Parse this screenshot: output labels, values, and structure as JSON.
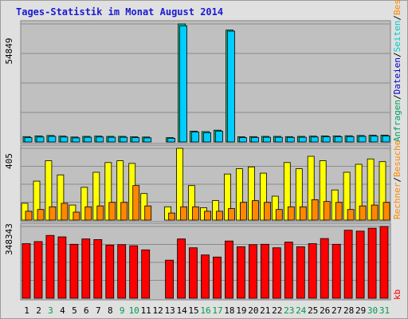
{
  "chart_data": {
    "type": "bar",
    "title": "Tages-Statistik im Monat August 2014",
    "categories": [
      "1",
      "2",
      "3",
      "4",
      "5",
      "6",
      "7",
      "8",
      "9",
      "10",
      "11",
      "12",
      "13",
      "14",
      "15",
      "16",
      "17",
      "18",
      "19",
      "20",
      "21",
      "22",
      "23",
      "24",
      "25",
      "26",
      "27",
      "28",
      "29",
      "30",
      "31"
    ],
    "weekend_days": [
      "3",
      "9",
      "10",
      "16",
      "17",
      "23",
      "24",
      "30",
      "31"
    ],
    "legend_right": {
      "top_parts": [
        "Anfragen",
        "/",
        "Dateien",
        "/",
        "Seiten",
        "/",
        "Besuche"
      ],
      "top_colors": [
        "#00a060",
        "#000000",
        "#0000cc",
        "#000000",
        "#00cccc",
        "#000000",
        "#ff8800"
      ],
      "mid_parts": [
        "Rechner",
        "/",
        "Besuche"
      ],
      "bottom": "kb"
    },
    "panels": [
      {
        "name": "top",
        "ymax_label": "54849",
        "ymax": 54849,
        "grid": true,
        "series": [
          {
            "name": "Anfragen",
            "color": "#00cc99",
            "values": [
              2500,
              2800,
              3000,
              2700,
              2300,
              2600,
              2700,
              2600,
              2600,
              2400,
              2300,
              0,
              2000,
              54849,
              5000,
              4800,
              5500,
              52000,
              2400,
              2500,
              2600,
              2600,
              2500,
              2600,
              2700,
              2800,
              2800,
              2900,
              3000,
              3100,
              3200
            ]
          },
          {
            "name": "Dateien",
            "color": "#00ccff",
            "values": [
              2000,
              2300,
              2600,
              2300,
              1900,
              2200,
              2300,
              2200,
              2200,
              2000,
              1900,
              0,
              1700,
              54000,
              4600,
              4300,
              5000,
              51500,
              2000,
              2100,
              2200,
              2200,
              2100,
              2200,
              2300,
              2400,
              2400,
              2500,
              2600,
              2700,
              2800
            ]
          }
        ]
      },
      {
        "name": "middle",
        "ymax_label": "405",
        "ymax": 405,
        "grid": true,
        "series": [
          {
            "name": "Rechner",
            "color": "#ffff00",
            "values": [
              95,
              220,
              335,
              255,
              85,
              185,
              270,
              325,
              335,
              320,
              150,
              0,
              75,
              405,
              195,
              70,
              110,
              260,
              290,
              300,
              265,
              135,
              325,
              290,
              360,
              335,
              170,
              270,
              315,
              345,
              330
            ]
          },
          {
            "name": "Besuche",
            "color": "#ff8800",
            "values": [
              50,
              60,
              75,
              95,
              45,
              75,
              80,
              100,
              100,
              195,
              80,
              0,
              40,
              75,
              75,
              50,
              50,
              65,
              100,
              110,
              100,
              60,
              75,
              75,
              115,
              105,
              100,
              60,
              80,
              85,
              100
            ]
          }
        ]
      },
      {
        "name": "bottom",
        "ymax_label": "348343",
        "ymax": 348343,
        "grid": true,
        "series": [
          {
            "name": "kb",
            "color": "#ff0000",
            "values": [
              265000,
              275000,
              305000,
              298000,
              262000,
              288000,
              285000,
              258000,
              260000,
              255000,
              235000,
              0,
              185000,
              288000,
              245000,
              210000,
              200000,
              278000,
              250000,
              260000,
              262000,
              245000,
              273000,
              250000,
              265000,
              290000,
              262000,
              330000,
              326000,
              340000,
              348343
            ]
          }
        ]
      }
    ]
  }
}
